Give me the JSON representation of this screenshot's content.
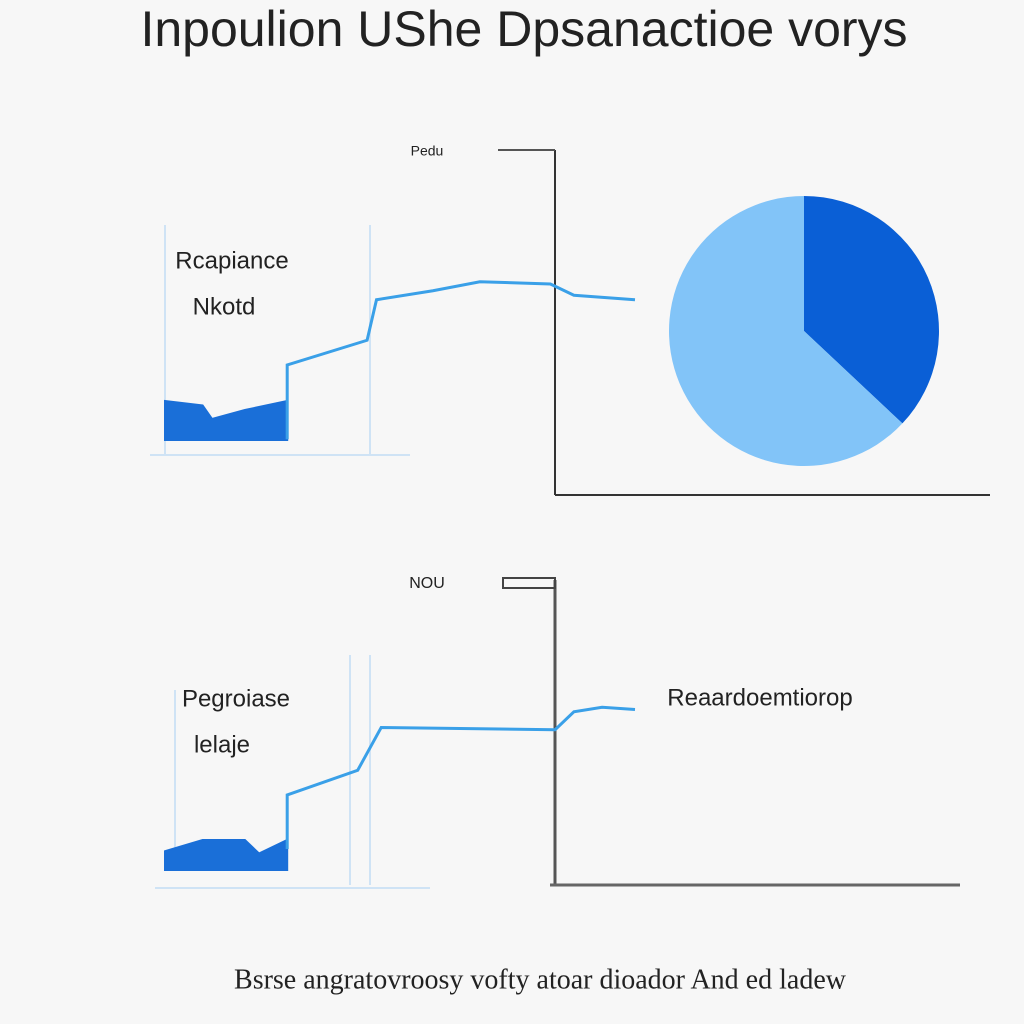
{
  "title": "Inpoulion UShe Dpsanactioe vorys",
  "footer": "Bsrse angratovroosy vofty atoar dioador And ed ladew",
  "chart_data": [
    {
      "type": "line",
      "annotations": [
        "Pedu",
        "Rcapiance",
        "Nkotd"
      ],
      "xlim": [
        0,
        100
      ],
      "ylim": [
        0,
        100
      ],
      "series": [
        {
          "color": "#1a6fd8",
          "fill": true,
          "x": [
            0,
            8,
            10,
            17,
            26
          ],
          "values": [
            24,
            22,
            16,
            20,
            24
          ]
        },
        {
          "color": "#3aa0e8",
          "fill": false,
          "x": [
            26,
            26,
            43,
            45,
            57,
            67,
            82,
            87,
            100
          ],
          "values": [
            7,
            40,
            51,
            69,
            73,
            77,
            76,
            71,
            69
          ]
        }
      ]
    },
    {
      "type": "pie",
      "values": [
        37,
        63
      ],
      "colors": [
        "#0a5fd6",
        "#82c4f8"
      ]
    },
    {
      "type": "line",
      "annotations": [
        "NOU",
        "Pegroiase",
        "lelaje",
        "Reaardoemtiorop"
      ],
      "xlim": [
        0,
        100
      ],
      "ylim": [
        0,
        100
      ],
      "series": [
        {
          "color": "#1a6fd8",
          "fill": true,
          "x": [
            0,
            8,
            17,
            20,
            26
          ],
          "values": [
            15,
            20,
            20,
            14,
            20
          ]
        },
        {
          "color": "#3aa0e8",
          "fill": false,
          "x": [
            26,
            26,
            41,
            46,
            83,
            87,
            93,
            100
          ],
          "values": [
            16,
            40,
            51,
            70,
            69,
            77,
            79,
            78
          ]
        }
      ]
    }
  ]
}
